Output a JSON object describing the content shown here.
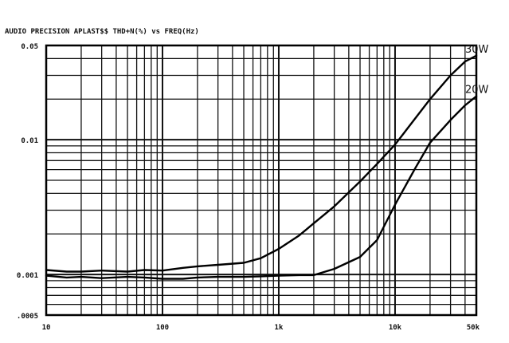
{
  "chart_data": {
    "type": "line",
    "title": "AUDIO PRECISION APLAST$$ THD+N(%) vs FREQ(Hz)",
    "xlabel": "",
    "ylabel": "",
    "x_scale": "log",
    "y_scale": "log",
    "xlim": [
      10,
      50000
    ],
    "ylim": [
      0.0005,
      0.05
    ],
    "grid": true,
    "x_ticks": [
      {
        "value": 10,
        "label": "10"
      },
      {
        "value": 100,
        "label": "100"
      },
      {
        "value": 1000,
        "label": "1k"
      },
      {
        "value": 10000,
        "label": "10k"
      },
      {
        "value": 50000,
        "label": "50k"
      }
    ],
    "y_ticks": [
      {
        "value": 0.05,
        "label": "0.05"
      },
      {
        "value": 0.01,
        "label": "0.01"
      },
      {
        "value": 0.001,
        "label": "0.001"
      },
      {
        "value": 0.0005,
        "label": ".0005"
      }
    ],
    "series": [
      {
        "name": "30W",
        "x": [
          10,
          15,
          20,
          30,
          50,
          70,
          100,
          150,
          200,
          300,
          500,
          700,
          1000,
          1500,
          2000,
          3000,
          5000,
          7000,
          10000,
          15000,
          20000,
          30000,
          40000,
          50000
        ],
        "y": [
          0.00108,
          0.00105,
          0.00105,
          0.00107,
          0.00105,
          0.00108,
          0.00107,
          0.00112,
          0.00115,
          0.00118,
          0.00122,
          0.00132,
          0.00155,
          0.00195,
          0.0024,
          0.0032,
          0.0049,
          0.0066,
          0.0092,
          0.0145,
          0.02,
          0.03,
          0.038,
          0.042
        ]
      },
      {
        "name": "20W",
        "x": [
          10,
          15,
          20,
          30,
          50,
          70,
          100,
          150,
          200,
          300,
          500,
          700,
          1000,
          1500,
          2000,
          3000,
          5000,
          7000,
          10000,
          15000,
          20000,
          30000,
          40000,
          50000
        ],
        "y": [
          0.00098,
          0.00095,
          0.00096,
          0.00094,
          0.00096,
          0.00095,
          0.00093,
          0.00093,
          0.00095,
          0.00096,
          0.00096,
          0.00097,
          0.00098,
          0.00099,
          0.00099,
          0.0011,
          0.00135,
          0.0018,
          0.0033,
          0.0062,
          0.0095,
          0.014,
          0.018,
          0.021
        ]
      }
    ]
  }
}
